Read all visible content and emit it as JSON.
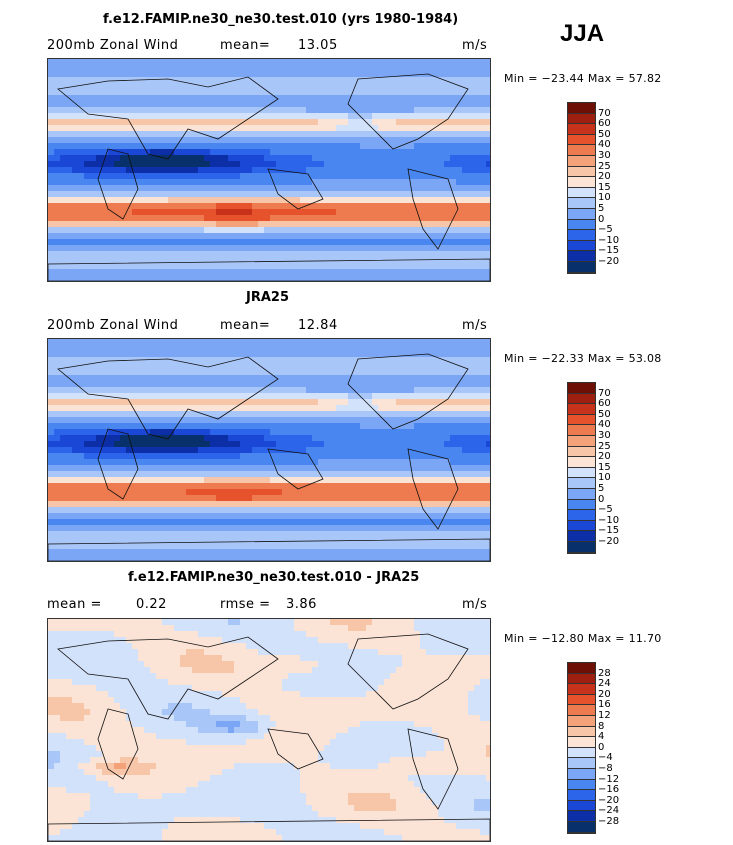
{
  "season": "JJA",
  "palette": [
    "#08306b",
    "#0c2fa7",
    "#1a47d6",
    "#2c64ea",
    "#4a86f0",
    "#7aa6f5",
    "#a9c6f8",
    "#d3e2fb",
    "#fbe4d6",
    "#f7c6a8",
    "#f3a27a",
    "#ee7b50",
    "#e5522c",
    "#c7331a",
    "#9e1e10",
    "#6e0f06"
  ],
  "panels": [
    {
      "title": "f.e12.FAMIP.ne30_ne30.test.010 (yrs 1980-1984)",
      "left_label": "200mb Zonal Wind",
      "stat_label": "mean=",
      "stat_value": "13.05",
      "stat2_label": "",
      "stat2_value": "",
      "units": "m/s",
      "minmax": "Min = −23.44  Max =  57.82",
      "colorbar_labels": [
        "70",
        "60",
        "50",
        "40",
        "30",
        "25",
        "20",
        "15",
        "10",
        "5",
        "0",
        "−5",
        "−10",
        "−15",
        "−20"
      ],
      "field": "model"
    },
    {
      "title": "JRA25",
      "left_label": "200mb Zonal Wind",
      "stat_label": "mean=",
      "stat_value": "12.84",
      "stat2_label": "",
      "stat2_value": "",
      "units": "m/s",
      "minmax": "Min = −22.33  Max =  53.08",
      "colorbar_labels": [
        "70",
        "60",
        "50",
        "40",
        "30",
        "25",
        "20",
        "15",
        "10",
        "5",
        "0",
        "−5",
        "−10",
        "−15",
        "−20"
      ],
      "field": "obs"
    },
    {
      "title": "f.e12.FAMIP.ne30_ne30.test.010 - JRA25",
      "left_label": "mean =",
      "stat_label": "0.22",
      "stat_value": "",
      "stat2_label": "rmse =",
      "stat2_value": "3.86",
      "units": "m/s",
      "minmax": "Min = −12.80  Max =  11.70",
      "colorbar_labels": [
        "28",
        "24",
        "20",
        "16",
        "12",
        "8",
        "4",
        "0",
        "−4",
        "−8",
        "−12",
        "−16",
        "−20",
        "−24",
        "−28"
      ],
      "field": "diff"
    }
  ],
  "chart_data": [
    {
      "type": "heatmap",
      "title": "f.e12.FAMIP.ne30_ne30.test.010 (yrs 1980-1984)",
      "variable": "200mb Zonal Wind",
      "units": "m/s",
      "mean": 13.05,
      "min": -23.44,
      "max": 57.82,
      "colorbar_levels": [
        70,
        60,
        50,
        40,
        30,
        25,
        20,
        15,
        10,
        5,
        0,
        -5,
        -10,
        -15,
        -20
      ]
    },
    {
      "type": "heatmap",
      "title": "JRA25",
      "variable": "200mb Zonal Wind",
      "units": "m/s",
      "mean": 12.84,
      "min": -22.33,
      "max": 53.08,
      "colorbar_levels": [
        70,
        60,
        50,
        40,
        30,
        25,
        20,
        15,
        10,
        5,
        0,
        -5,
        -10,
        -15,
        -20
      ]
    },
    {
      "type": "heatmap",
      "title": "f.e12.FAMIP.ne30_ne30.test.010 - JRA25",
      "units": "m/s",
      "mean": 0.22,
      "rmse": 3.86,
      "min": -12.8,
      "max": 11.7,
      "colorbar_levels": [
        28,
        24,
        20,
        16,
        12,
        8,
        4,
        0,
        -4,
        -8,
        -12,
        -16,
        -20,
        -24,
        -28
      ]
    }
  ]
}
